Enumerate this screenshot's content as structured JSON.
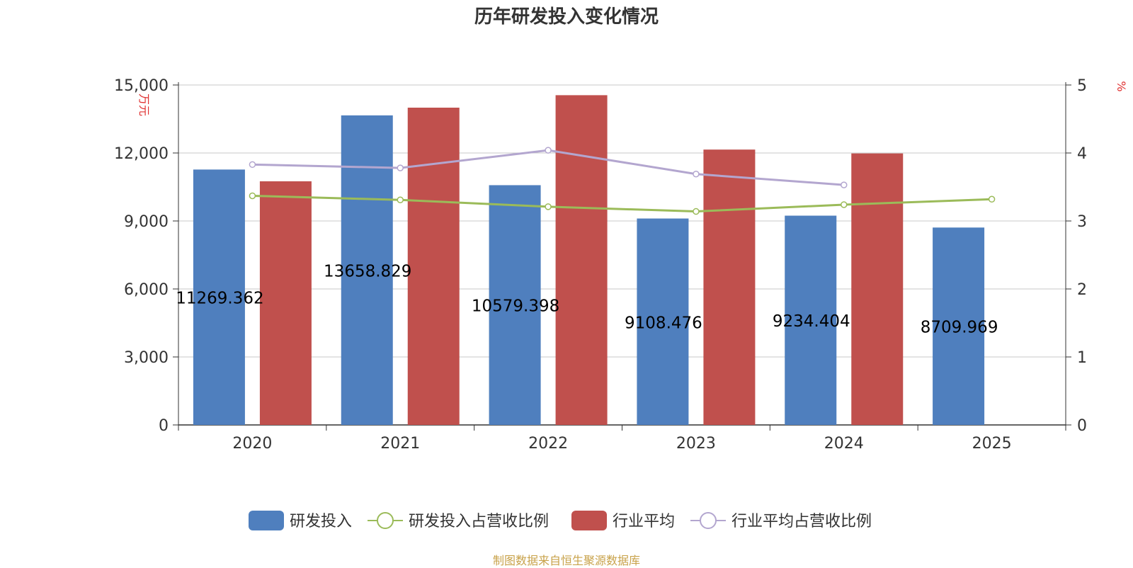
{
  "chart_data": {
    "type": "bar",
    "title": "历年研发投入变化情况",
    "ylabel_left": "万元",
    "ylabel_right": "%",
    "categories": [
      "2020",
      "2021",
      "2022",
      "2023",
      "2024",
      "2025"
    ],
    "ylim_left": [
      0,
      15000
    ],
    "ylim_right": [
      0,
      5
    ],
    "yticks_left": [
      "0",
      "3,000",
      "6,000",
      "9,000",
      "12,000",
      "15,000"
    ],
    "yticks_right": [
      "0",
      "1",
      "2",
      "3",
      "4",
      "5"
    ],
    "grid": true,
    "legend_position": "bottom",
    "bar_series": [
      {
        "name": "研发投入",
        "color": "#4f7fbe",
        "values": [
          11269.362,
          13658.829,
          10579.398,
          9108.476,
          9234.404,
          8709.969
        ],
        "labels": [
          "11269.362",
          "13658.829",
          "10579.398",
          "9108.476",
          "9234.404",
          "8709.969"
        ]
      },
      {
        "name": "行业平均",
        "color": "#c0504d",
        "values": [
          10750,
          14000,
          14550,
          12150,
          11980,
          null
        ]
      }
    ],
    "line_series": [
      {
        "name": "研发投入占营收比例",
        "color": "#9bbb59",
        "values": [
          3.37,
          3.31,
          3.21,
          3.14,
          3.24,
          3.32
        ]
      },
      {
        "name": "行业平均占营收比例",
        "color": "#b3a6cf",
        "values": [
          3.83,
          3.78,
          4.04,
          3.69,
          3.53,
          null
        ]
      }
    ],
    "legend": [
      {
        "name": "研发投入",
        "kind": "bar",
        "color": "#4f7fbe"
      },
      {
        "name": "研发投入占营收比例",
        "kind": "line",
        "color": "#9bbb59"
      },
      {
        "name": "行业平均",
        "kind": "bar",
        "color": "#c0504d"
      },
      {
        "name": "行业平均占营收比例",
        "kind": "line",
        "color": "#b3a6cf"
      }
    ]
  },
  "source_text": "制图数据来自恒生聚源数据库"
}
